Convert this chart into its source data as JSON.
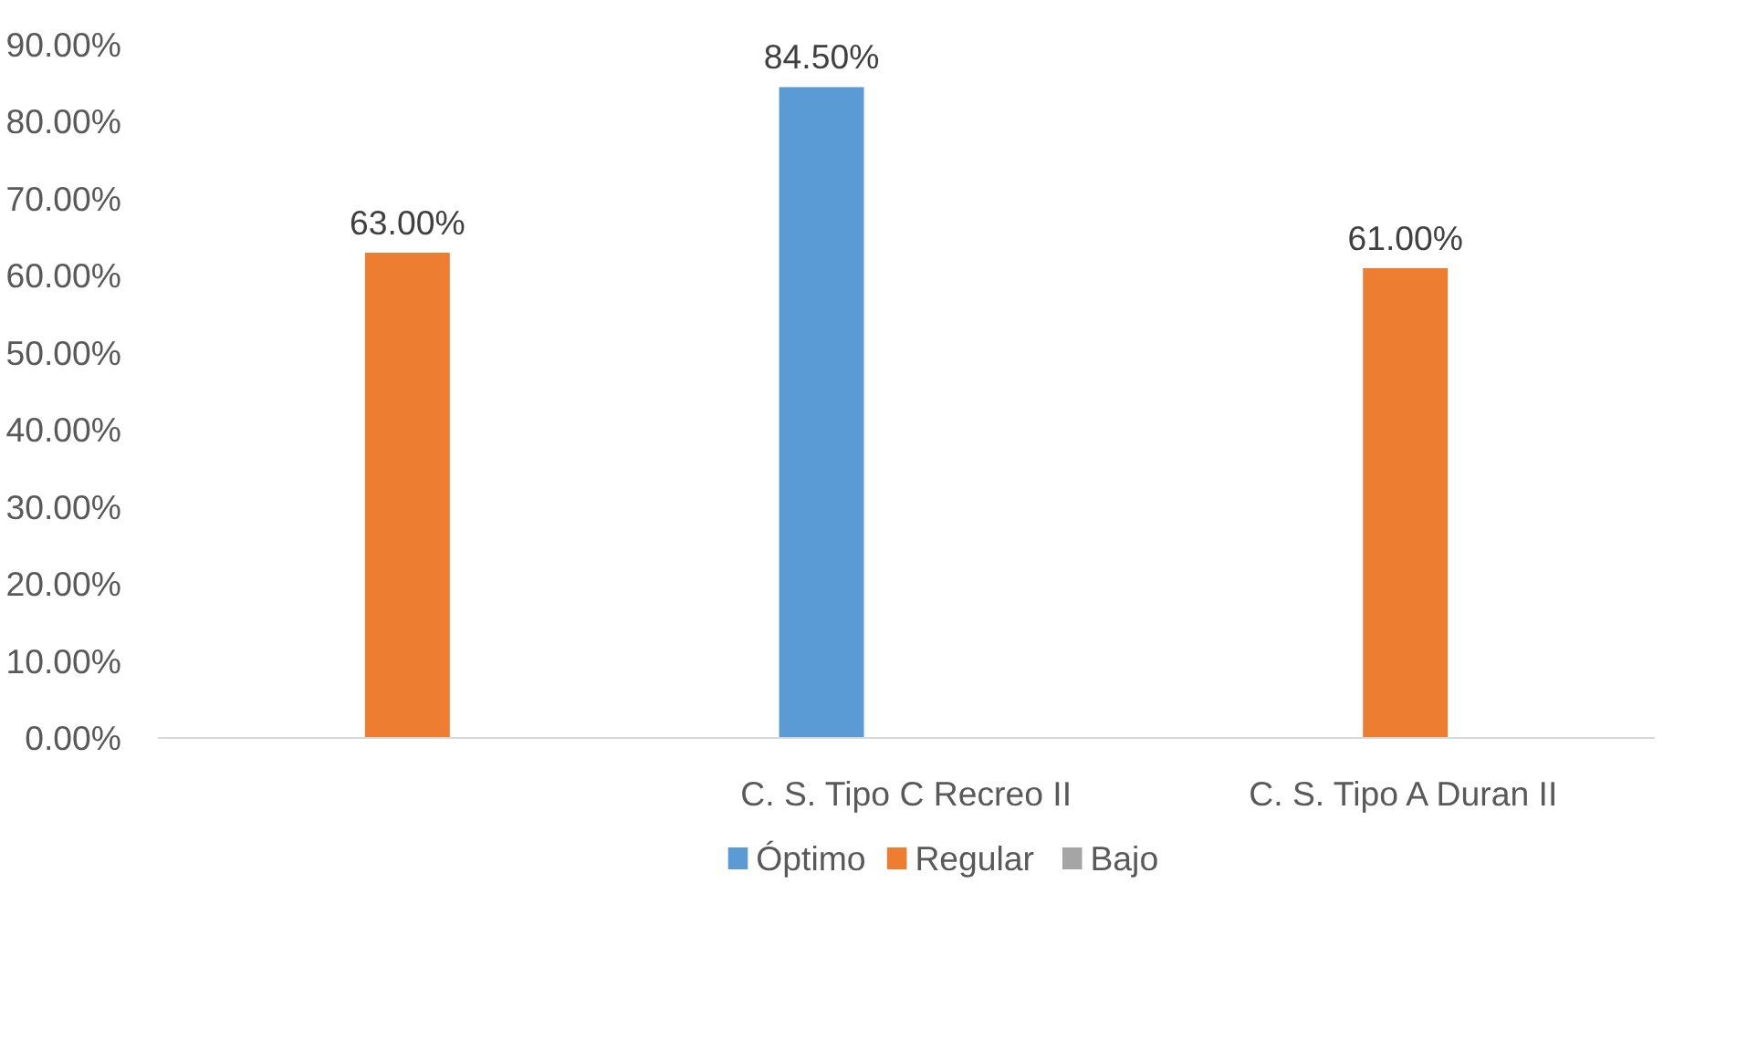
{
  "chart_data": {
    "type": "bar",
    "categories": [
      null,
      "C. S. Tipo C Recreo II",
      "C. S. Tipo A Duran II"
    ],
    "series": [
      {
        "name": "Óptimo",
        "color": "#5b9bd5",
        "values": [
          null,
          84.5,
          null
        ],
        "value_labels": [
          null,
          "84.50%",
          null
        ]
      },
      {
        "name": "Regular",
        "color": "#ed7d31",
        "values": [
          63,
          null,
          61
        ],
        "value_labels": [
          "63.00%",
          null,
          "61.00%"
        ]
      },
      {
        "name": "Bajo",
        "color": "#a5a5a5",
        "values": [
          null,
          null,
          null
        ]
      }
    ],
    "ylim": [
      0,
      90
    ],
    "yticks": [
      {
        "value": 0,
        "label": "0.00%"
      },
      {
        "value": 10,
        "label": "10.00%"
      },
      {
        "value": 20,
        "label": "20.00%"
      },
      {
        "value": 30,
        "label": "30.00%"
      },
      {
        "value": 40,
        "label": "40.00%"
      },
      {
        "value": 50,
        "label": "50.00%"
      },
      {
        "value": 60,
        "label": "60.00%"
      },
      {
        "value": 70,
        "label": "70.00%"
      },
      {
        "value": 80,
        "label": "80.00%"
      },
      {
        "value": 90,
        "label": "90.00%"
      }
    ],
    "grid": false,
    "legend": "bottom"
  }
}
